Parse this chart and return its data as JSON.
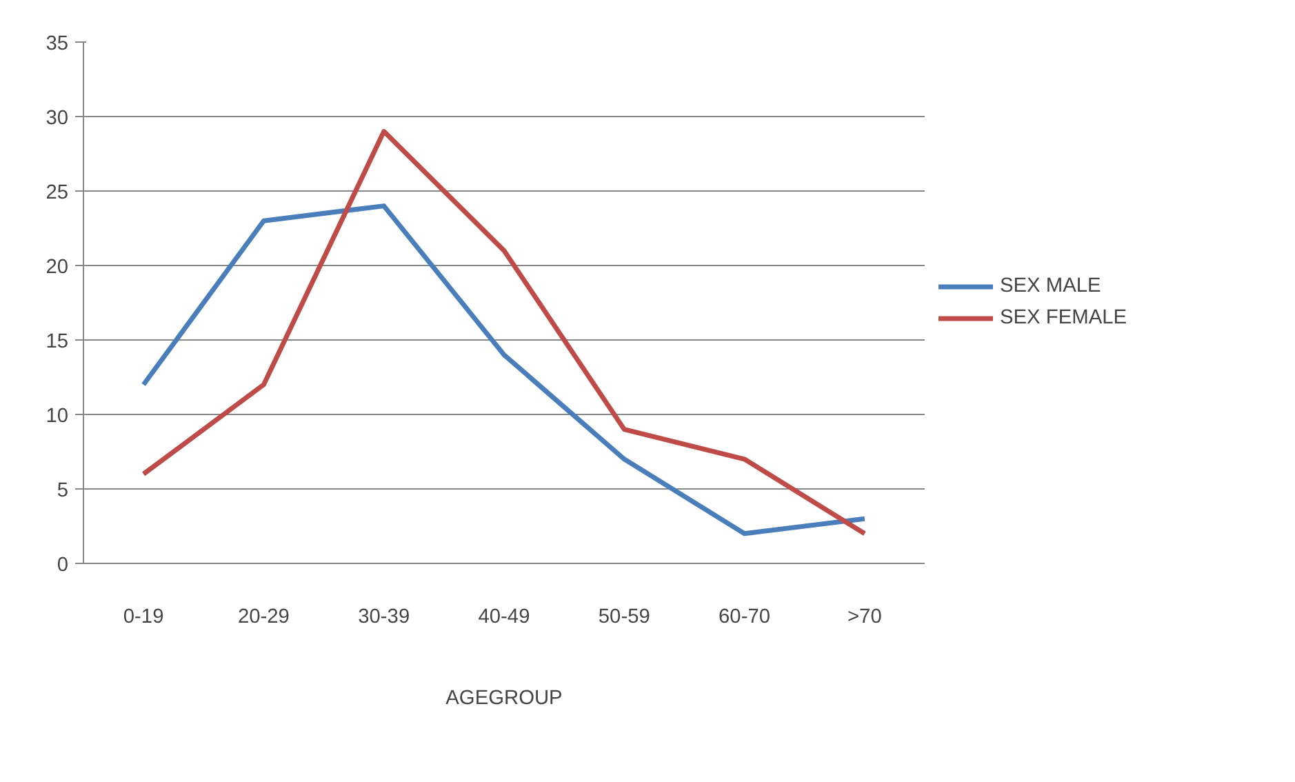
{
  "chart_data": {
    "type": "line",
    "xlabel": "AGEGROUP",
    "categories": [
      "0-19",
      "20-29",
      "30-39",
      "40-49",
      "50-59",
      "60-70",
      ">70"
    ],
    "series": [
      {
        "name": "SEX MALE",
        "color": "#4a7ebb",
        "values": [
          12,
          23,
          24,
          14,
          7,
          2,
          3
        ]
      },
      {
        "name": "SEX FEMALE",
        "color": "#be4b48",
        "values": [
          6,
          12,
          29,
          21,
          9,
          7,
          2
        ]
      }
    ],
    "ylim": [
      0,
      35
    ],
    "yticks": [
      0,
      5,
      10,
      15,
      20,
      25,
      30,
      35
    ],
    "grid": "y",
    "legend": "right",
    "marker": "none",
    "line_style": "solid"
  }
}
